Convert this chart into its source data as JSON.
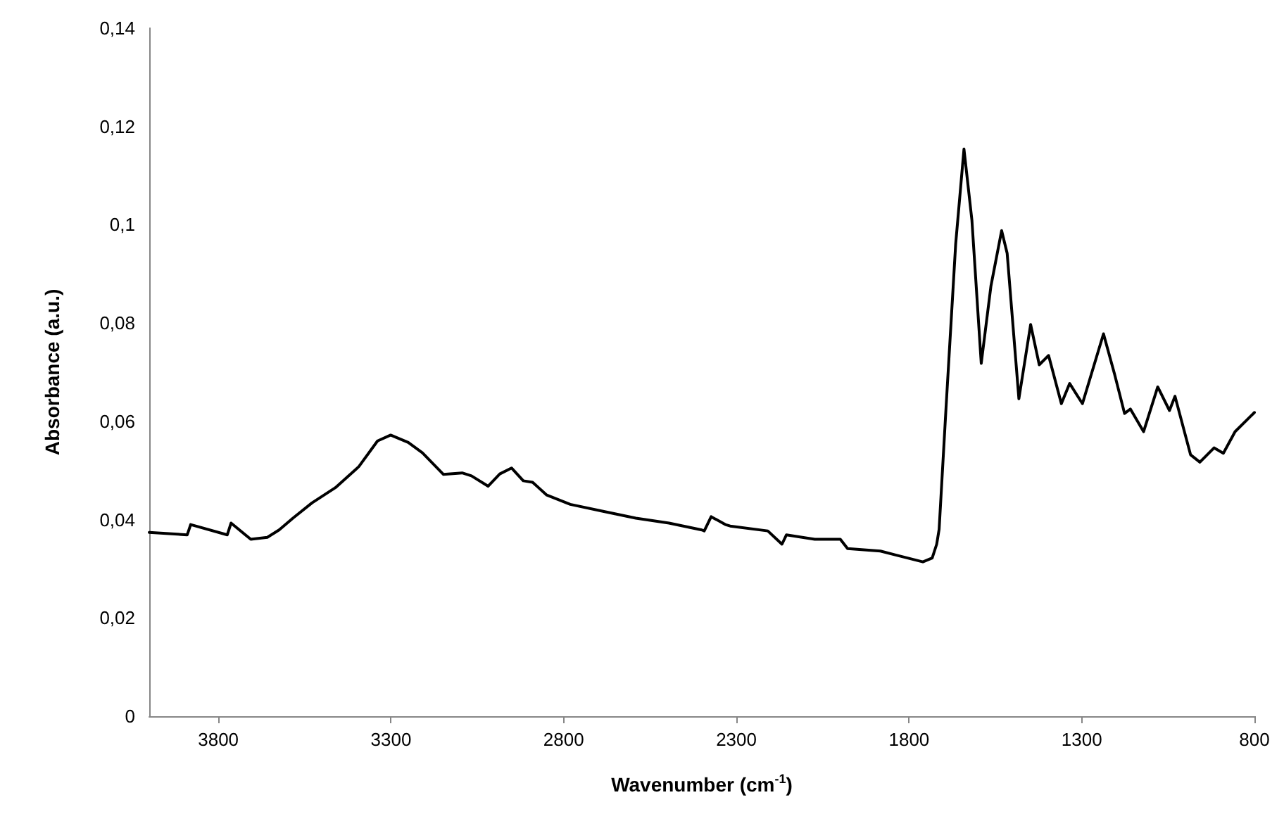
{
  "chart_data": {
    "type": "line",
    "xlabel": "Wavenumber (cm$^{-1}$)",
    "ylabel": "Absorbance (a.u.)",
    "xlim": [
      4000,
      800
    ],
    "xticks": [
      3800,
      3300,
      2800,
      2300,
      1800,
      1300,
      800
    ],
    "ylim": [
      0,
      0.14
    ],
    "yticks": [
      0,
      {
        "value": 0.02,
        "label": "0,02"
      },
      {
        "value": 0.04,
        "label": "0,04"
      },
      {
        "value": 0.06,
        "label": "0,06"
      },
      {
        "value": 0.08,
        "label": "0,08"
      },
      {
        "value": 0.1,
        "label": "0,1"
      },
      {
        "value": 0.12,
        "label": "0,12"
      },
      {
        "value": 0.14,
        "label": "0,14"
      }
    ],
    "grid": false,
    "marker": "none",
    "line_style": "solid",
    "series": [
      {
        "color": "#000000",
        "x": [
          4000,
          3890,
          3880,
          3774,
          3763,
          3706,
          3658,
          3624,
          3584,
          3529,
          3461,
          3393,
          3339,
          3301,
          3250,
          3209,
          3148,
          3094,
          3067,
          3019,
          2985,
          2951,
          2917,
          2890,
          2849,
          2781,
          2686,
          2591,
          2495,
          2400,
          2393,
          2373,
          2332,
          2318,
          2209,
          2168,
          2155,
          2073,
          1999,
          1978,
          1883,
          1760,
          1733,
          1720,
          1713,
          1693,
          1665,
          1641,
          1618,
          1591,
          1563,
          1532,
          1516,
          1482,
          1448,
          1423,
          1396,
          1359,
          1335,
          1298,
          1237,
          1205,
          1176,
          1159,
          1121,
          1080,
          1046,
          1030,
          985,
          958,
          917,
          890,
          856,
          800
        ],
        "values": [
          0.0374,
          0.0369,
          0.039,
          0.0369,
          0.0393,
          0.036,
          0.0364,
          0.0379,
          0.0403,
          0.0434,
          0.0465,
          0.0508,
          0.056,
          0.0572,
          0.0557,
          0.0536,
          0.0492,
          0.0495,
          0.0489,
          0.0468,
          0.0493,
          0.0505,
          0.0479,
          0.0476,
          0.045,
          0.0431,
          0.0417,
          0.0403,
          0.0393,
          0.0379,
          0.0377,
          0.0406,
          0.039,
          0.0387,
          0.0377,
          0.035,
          0.0369,
          0.036,
          0.036,
          0.0341,
          0.0336,
          0.0314,
          0.0322,
          0.035,
          0.038,
          0.0627,
          0.0961,
          0.1154,
          0.1009,
          0.0718,
          0.0875,
          0.0988,
          0.0942,
          0.0646,
          0.0797,
          0.0715,
          0.0734,
          0.0636,
          0.0677,
          0.0636,
          0.0778,
          0.0696,
          0.0616,
          0.0625,
          0.0579,
          0.067,
          0.0622,
          0.0651,
          0.0532,
          0.0517,
          0.0546,
          0.0535,
          0.0579,
          0.0618
        ]
      }
    ]
  }
}
